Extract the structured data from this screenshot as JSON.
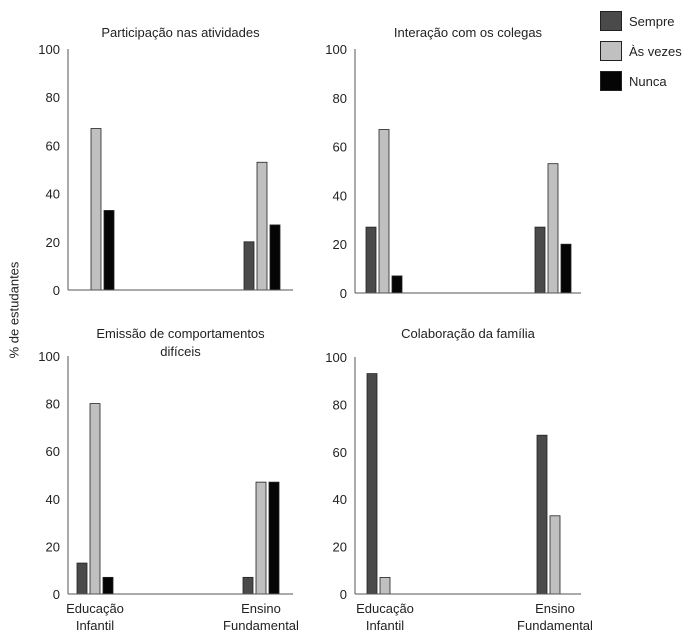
{
  "colors": {
    "sempre": "#4a4a4a",
    "as_vezes": "#c0c0c0",
    "nunca": "#050505",
    "axis": "#555555",
    "text": "#222222"
  },
  "ylabel": "% de estudantes",
  "legend": [
    {
      "name": "Sempre",
      "color": "#4a4a4a"
    },
    {
      "name": "Às vezes",
      "color": "#c0c0c0"
    },
    {
      "name": "Nunca",
      "color": "#050505"
    }
  ],
  "chart_data": [
    {
      "type": "bar",
      "title": [
        "Participação nas atividades"
      ],
      "categories": [
        [
          "Educação",
          "Infantil"
        ],
        [
          "Ensino",
          "Fundamental"
        ]
      ],
      "show_xticks": false,
      "ylim": [
        0,
        100
      ],
      "yticks": [
        0,
        20,
        40,
        60,
        80,
        100
      ],
      "series": [
        {
          "name": "Sempre",
          "values": [
            0,
            20
          ]
        },
        {
          "name": "Às vezes",
          "values": [
            67,
            53
          ]
        },
        {
          "name": "Nunca",
          "values": [
            33,
            27
          ]
        }
      ]
    },
    {
      "type": "bar",
      "title": [
        "Interação com os colegas"
      ],
      "categories": [
        [
          "Educação",
          "Infantil"
        ],
        [
          "Ensino",
          "Fundamental"
        ]
      ],
      "show_xticks": false,
      "ylim": [
        0,
        100
      ],
      "yticks": [
        0,
        20,
        40,
        60,
        80,
        100
      ],
      "series": [
        {
          "name": "Sempre",
          "values": [
            27,
            27
          ]
        },
        {
          "name": "Às vezes",
          "values": [
            67,
            53
          ]
        },
        {
          "name": "Nunca",
          "values": [
            7,
            20
          ]
        }
      ]
    },
    {
      "type": "bar",
      "title": [
        "Emissão de comportamentos",
        "difíceis"
      ],
      "categories": [
        [
          "Educação",
          "Infantil"
        ],
        [
          "Ensino",
          "Fundamental"
        ]
      ],
      "show_xticks": true,
      "ylim": [
        0,
        100
      ],
      "yticks": [
        0,
        20,
        40,
        60,
        80,
        100
      ],
      "series": [
        {
          "name": "Sempre",
          "values": [
            13,
            7
          ]
        },
        {
          "name": "Às vezes",
          "values": [
            80,
            47
          ]
        },
        {
          "name": "Nunca",
          "values": [
            7,
            47
          ]
        }
      ]
    },
    {
      "type": "bar",
      "title": [
        "Colaboração da família"
      ],
      "categories": [
        [
          "Educação",
          "Infantil"
        ],
        [
          "Ensino",
          "Fundamental"
        ]
      ],
      "show_xticks": true,
      "ylim": [
        0,
        100
      ],
      "yticks": [
        0,
        20,
        40,
        60,
        80,
        100
      ],
      "series": [
        {
          "name": "Sempre",
          "values": [
            93,
            67
          ]
        },
        {
          "name": "Às vezes",
          "values": [
            7,
            33
          ]
        },
        {
          "name": "Nunca",
          "values": [
            0,
            0
          ]
        }
      ]
    }
  ]
}
